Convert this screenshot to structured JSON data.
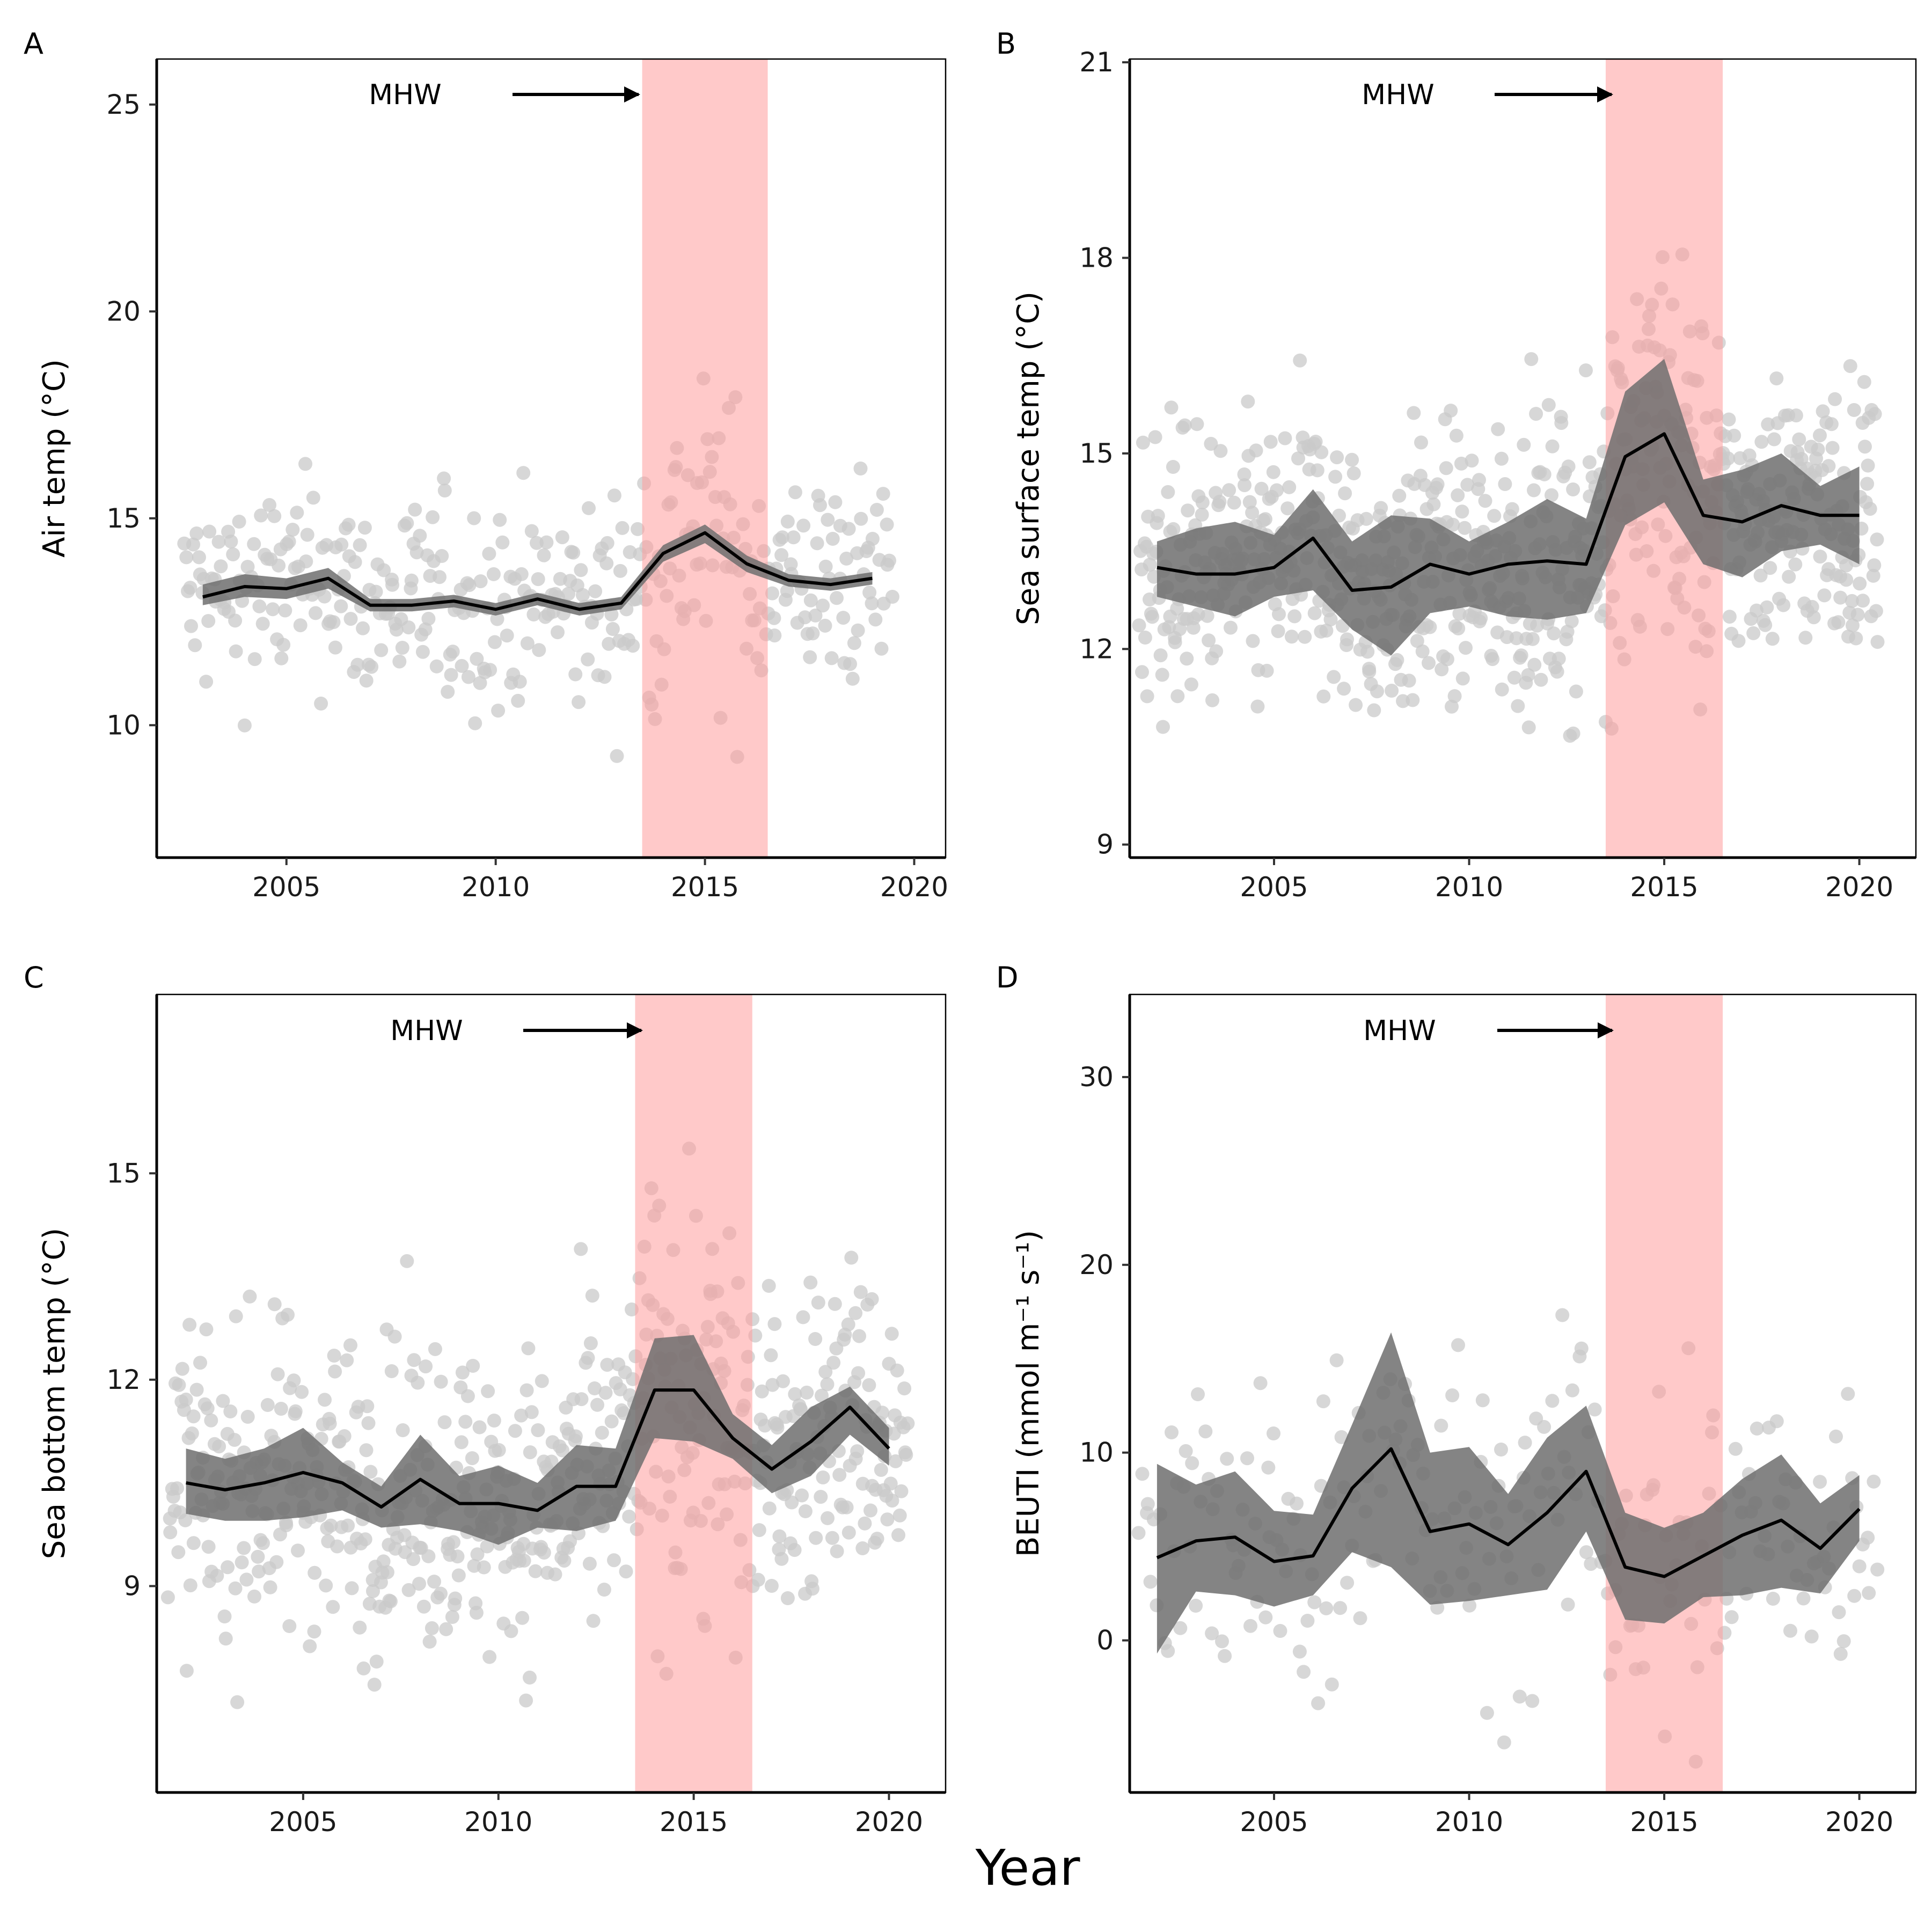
{
  "figure": {
    "xlabel": "Year",
    "mhw_label": "MHW"
  },
  "colors": {
    "mhw_band": "#ff9c9c",
    "ribbon": "#6e6e6e",
    "points": "#c9c9c9",
    "line": "#000000"
  },
  "chart_data": [
    {
      "panel": "A",
      "type": "line",
      "ylabel": "Air temp (°C)",
      "xlim": [
        2001.9,
        2020.75
      ],
      "ylim": [
        6.8,
        26.1
      ],
      "xticks": [
        2005,
        2010,
        2015,
        2020
      ],
      "yticks": [
        10,
        15,
        20,
        25
      ],
      "mhw_band": [
        2013.5,
        2016.5
      ],
      "spread": 1.8,
      "sample_period": 0.045,
      "x": [
        2003,
        2004,
        2005,
        2006,
        2007,
        2008,
        2009,
        2010,
        2011,
        2012,
        2013,
        2014,
        2015,
        2016,
        2017,
        2018,
        2019
      ],
      "mean": [
        13.1,
        13.35,
        13.3,
        13.55,
        12.9,
        12.9,
        13.0,
        12.8,
        13.05,
        12.8,
        12.95,
        14.15,
        14.65,
        13.9,
        13.5,
        13.4,
        13.55
      ],
      "lower": [
        12.9,
        13.1,
        13.05,
        13.3,
        12.75,
        12.75,
        12.85,
        12.65,
        12.9,
        12.65,
        12.8,
        13.95,
        14.4,
        13.7,
        13.35,
        13.25,
        13.4
      ],
      "upper": [
        13.4,
        13.65,
        13.55,
        13.8,
        13.05,
        13.05,
        13.15,
        12.95,
        13.2,
        12.95,
        13.1,
        14.35,
        14.85,
        14.1,
        13.65,
        13.55,
        13.7
      ]
    },
    {
      "panel": "B",
      "type": "line",
      "ylabel": "Sea surface temp (°C)",
      "xlim": [
        2001.3,
        2021.45
      ],
      "ylim": [
        8.8,
        21.05
      ],
      "xticks": [
        2005,
        2010,
        2015,
        2020
      ],
      "yticks": [
        9,
        12,
        15,
        18,
        21
      ],
      "mhw_band": [
        2013.5,
        2016.5
      ],
      "spread": 1.5,
      "sample_period": 0.025,
      "x": [
        2002,
        2003,
        2004,
        2005,
        2006,
        2007,
        2008,
        2009,
        2010,
        2011,
        2012,
        2013,
        2014,
        2015,
        2016,
        2017,
        2018,
        2019,
        2020
      ],
      "mean": [
        13.25,
        13.15,
        13.15,
        13.25,
        13.7,
        12.9,
        12.95,
        13.3,
        13.15,
        13.3,
        13.35,
        13.3,
        14.95,
        15.3,
        14.05,
        13.95,
        14.2,
        14.05,
        14.05
      ],
      "lower": [
        12.8,
        12.65,
        12.5,
        12.8,
        12.9,
        12.3,
        11.9,
        12.55,
        12.65,
        12.5,
        12.45,
        12.55,
        13.9,
        14.25,
        13.3,
        13.1,
        13.5,
        13.6,
        13.3
      ],
      "upper": [
        13.65,
        13.85,
        13.95,
        13.75,
        14.45,
        13.65,
        14.05,
        14.0,
        13.65,
        13.95,
        14.3,
        14.0,
        15.95,
        16.45,
        14.6,
        14.75,
        15.0,
        14.5,
        14.8
      ]
    },
    {
      "panel": "C",
      "type": "line",
      "ylabel": "Sea bottom temp (°C)",
      "xlim": [
        2001.25,
        2021.45
      ],
      "ylim": [
        6.0,
        17.6
      ],
      "xticks": [
        2005,
        2010,
        2015,
        2020
      ],
      "yticks": [
        9,
        12,
        15
      ],
      "mhw_band": [
        2013.5,
        2016.5
      ],
      "spread": 1.6,
      "sample_period": 0.03,
      "x": [
        2002,
        2003,
        2004,
        2005,
        2006,
        2007,
        2008,
        2009,
        2010,
        2011,
        2012,
        2013,
        2014,
        2015,
        2016,
        2017,
        2018,
        2019,
        2020
      ],
      "mean": [
        10.5,
        10.4,
        10.5,
        10.65,
        10.5,
        10.15,
        10.55,
        10.2,
        10.2,
        10.1,
        10.45,
        10.45,
        11.85,
        11.85,
        11.15,
        10.7,
        11.1,
        11.6,
        11.0
      ],
      "lower": [
        10.05,
        9.95,
        9.95,
        10.0,
        10.1,
        9.85,
        9.9,
        9.8,
        9.6,
        9.85,
        9.8,
        9.95,
        11.15,
        11.1,
        10.85,
        10.35,
        10.6,
        11.2,
        10.75
      ],
      "upper": [
        11.0,
        10.85,
        11.0,
        11.3,
        10.8,
        10.45,
        11.2,
        10.6,
        10.75,
        10.5,
        11.05,
        11.0,
        12.6,
        12.65,
        11.5,
        11.05,
        11.6,
        11.9,
        11.3
      ]
    },
    {
      "panel": "D",
      "type": "line",
      "ylabel": "BEUTI (mmol m⁻¹ s⁻¹)",
      "xlim": [
        2001.3,
        2021.45
      ],
      "ylim": [
        -8.1,
        34.4
      ],
      "xticks": [
        2005,
        2010,
        2015,
        2020
      ],
      "yticks": [
        0,
        10,
        20,
        30
      ],
      "mhw_band": [
        2013.5,
        2016.5
      ],
      "spread": 6.0,
      "sample_period": 0.08,
      "x": [
        2002,
        2003,
        2004,
        2005,
        2006,
        2007,
        2008,
        2009,
        2010,
        2011,
        2012,
        2013,
        2014,
        2015,
        2016,
        2017,
        2018,
        2019,
        2020
      ],
      "mean": [
        4.4,
        5.3,
        5.5,
        4.2,
        4.5,
        8.1,
        10.2,
        5.8,
        6.2,
        5.1,
        6.8,
        9.0,
        3.9,
        3.4,
        4.5,
        5.6,
        6.4,
        4.9,
        7.0
      ],
      "lower": [
        -0.7,
        2.6,
        2.4,
        1.8,
        2.4,
        4.7,
        3.9,
        1.9,
        2.1,
        2.4,
        2.7,
        5.8,
        1.1,
        0.9,
        2.3,
        2.4,
        2.8,
        2.5,
        5.3
      ],
      "upper": [
        9.4,
        8.3,
        9.0,
        6.9,
        6.7,
        11.5,
        16.4,
        10.0,
        10.3,
        7.8,
        10.8,
        12.5,
        6.8,
        6.0,
        6.8,
        8.6,
        9.9,
        7.3,
        8.8
      ]
    }
  ]
}
